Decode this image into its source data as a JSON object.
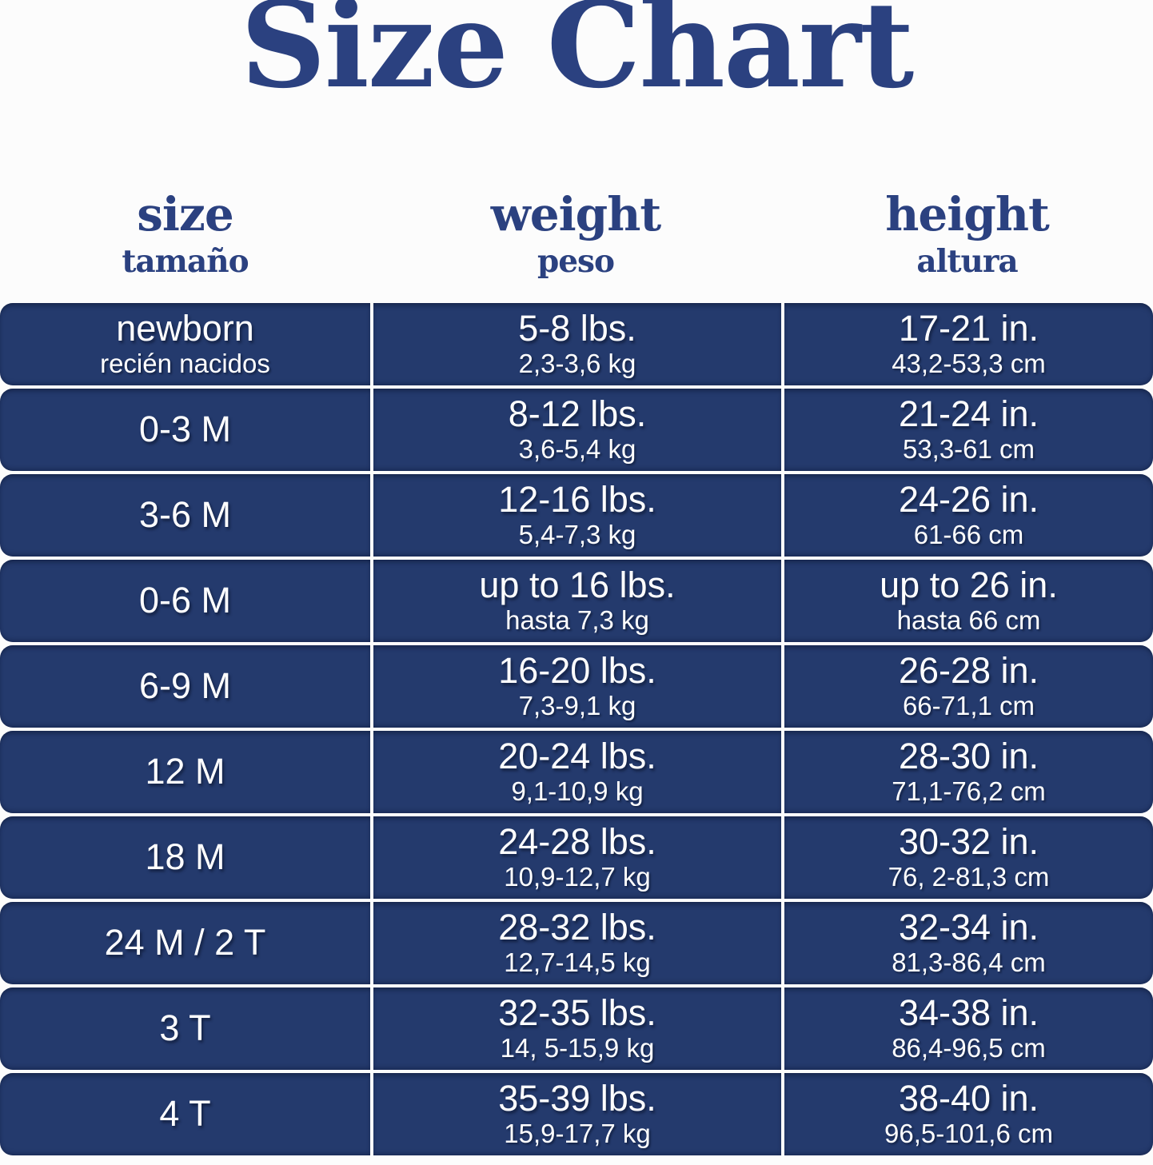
{
  "title": "Size Chart",
  "colors": {
    "row_navy": "#243a6d",
    "heading_navy": "#2b4180",
    "cell_text": "#ffffff",
    "background": "#fcfcfc"
  },
  "columns": [
    {
      "label": "size",
      "sublabel": "tamaño"
    },
    {
      "label": "weight",
      "sublabel": "peso"
    },
    {
      "label": "height",
      "sublabel": "altura"
    }
  ],
  "rows": [
    {
      "size": "newborn",
      "size_sub": "recién nacidos",
      "weight": "5-8 lbs.",
      "weight_sub": "2,3-3,6 kg",
      "height": "17-21 in.",
      "height_sub": "43,2-53,3 cm"
    },
    {
      "size": "0-3 M",
      "size_sub": "",
      "weight": "8-12 lbs.",
      "weight_sub": "3,6-5,4 kg",
      "height": "21-24 in.",
      "height_sub": "53,3-61 cm"
    },
    {
      "size": "3-6 M",
      "size_sub": "",
      "weight": "12-16 lbs.",
      "weight_sub": "5,4-7,3 kg",
      "height": "24-26 in.",
      "height_sub": "61-66 cm"
    },
    {
      "size": "0-6 M",
      "size_sub": "",
      "weight": "up to 16 lbs.",
      "weight_sub": "hasta 7,3 kg",
      "height": "up to 26 in.",
      "height_sub": "hasta 66 cm"
    },
    {
      "size": "6-9 M",
      "size_sub": "",
      "weight": "16-20 lbs.",
      "weight_sub": "7,3-9,1 kg",
      "height": "26-28 in.",
      "height_sub": "66-71,1 cm"
    },
    {
      "size": "12 M",
      "size_sub": "",
      "weight": "20-24 lbs.",
      "weight_sub": "9,1-10,9 kg",
      "height": "28-30 in.",
      "height_sub": "71,1-76,2 cm"
    },
    {
      "size": "18 M",
      "size_sub": "",
      "weight": "24-28 lbs.",
      "weight_sub": "10,9-12,7 kg",
      "height": "30-32 in.",
      "height_sub": "76, 2-81,3 cm"
    },
    {
      "size": "24 M / 2 T",
      "size_sub": "",
      "weight": "28-32 lbs.",
      "weight_sub": "12,7-14,5 kg",
      "height": "32-34 in.",
      "height_sub": "81,3-86,4 cm"
    },
    {
      "size": "3 T",
      "size_sub": "",
      "weight": "32-35 lbs.",
      "weight_sub": "14, 5-15,9 kg",
      "height": "34-38 in.",
      "height_sub": "86,4-96,5 cm"
    },
    {
      "size": "4 T",
      "size_sub": "",
      "weight": "35-39 lbs.",
      "weight_sub": "15,9-17,7 kg",
      "height": "38-40 in.",
      "height_sub": "96,5-101,6 cm"
    }
  ]
}
